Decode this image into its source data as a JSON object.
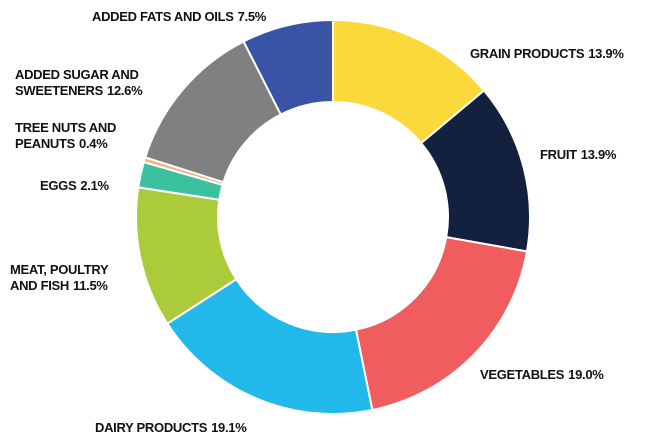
{
  "chart_data": {
    "type": "donut",
    "categories": [
      "GRAIN PRODUCTS",
      "FRUIT",
      "VEGETABLES",
      "DAIRY PRODUCTS",
      "MEAT, POULTRY AND FISH",
      "EGGS",
      "TREE NUTS AND PEANUTS",
      "ADDED SUGAR AND SWEETENERS",
      "ADDED FATS AND OILS"
    ],
    "values": [
      13.9,
      13.9,
      19.0,
      19.1,
      11.5,
      2.1,
      0.4,
      12.6,
      7.5
    ],
    "value_labels": [
      "13.9%",
      "13.9%",
      "19.0%",
      "19.1%",
      "11.5%",
      "2.1%",
      "0.4%",
      "12.6%",
      "7.5%"
    ],
    "colors": [
      "#fcd93a",
      "#13213f",
      "#f05d5e",
      "#22b8ea",
      "#abcb3a",
      "#3cc1a0",
      "#f4b183",
      "#808080",
      "#3954a4"
    ]
  }
}
